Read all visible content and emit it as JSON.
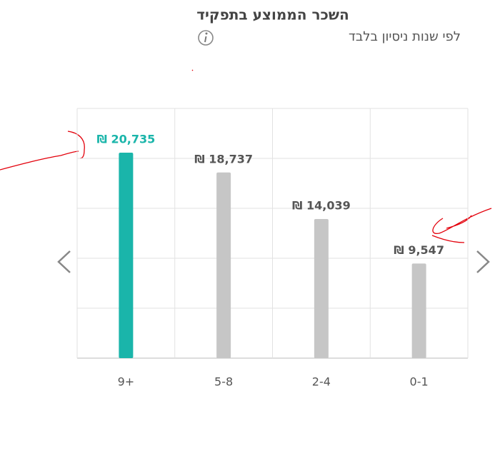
{
  "chart_data": {
    "type": "bar",
    "title": "השכר הממוצע בתפקיד",
    "subtitle": "לפי שנות ניסיון בלבד",
    "categories": [
      "9+",
      "5-8",
      "2-4",
      "0-1"
    ],
    "values": [
      20735,
      18737,
      14039,
      9547
    ],
    "value_labels": [
      "₪ 20,735",
      "₪ 18,737",
      "₪ 14,039",
      "₪ 9,547"
    ],
    "colors": [
      "#1ab5aa",
      "#c6c6c6",
      "#c6c6c6",
      "#c6c6c6"
    ],
    "label_colors": [
      "#1ab5aa",
      "#555555",
      "#555555",
      "#555555"
    ],
    "ylim": [
      0,
      25200
    ],
    "grid": true
  }
}
